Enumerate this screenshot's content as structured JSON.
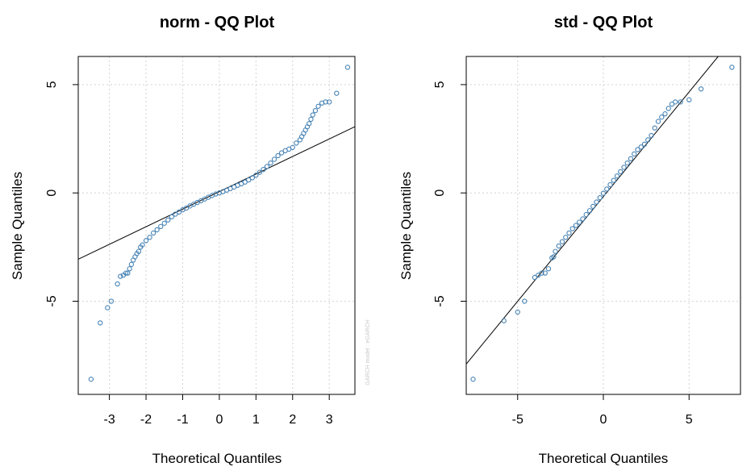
{
  "chart_data": [
    {
      "type": "scatter",
      "title": "norm - QQ Plot",
      "xlabel": "Theoretical Quantiles",
      "ylabel": "Sample Quantiles",
      "xlim": [
        -3.85,
        3.7
      ],
      "ylim": [
        -9.3,
        6.3
      ],
      "xticks": [
        "-3",
        "-2",
        "-1",
        "0",
        "1",
        "2",
        "3"
      ],
      "yticks": [
        "-5",
        "0",
        "5"
      ],
      "grid": true,
      "watermark": "GARCH model : eGARCH",
      "point_color": "#4682b4",
      "reference_line": {
        "x1": -3.85,
        "y1": -3.06,
        "x2": 3.7,
        "y2": 3.06
      },
      "points_x": [
        -3.5,
        -3.25,
        -3.05,
        -2.95,
        -2.78,
        -2.7,
        -2.62,
        -2.55,
        -2.5,
        -2.45,
        -2.4,
        -2.35,
        -2.3,
        -2.25,
        -2.2,
        -2.15,
        -2.1,
        -2.0,
        -1.9,
        -1.8,
        -1.7,
        -1.6,
        -1.5,
        -1.4,
        -1.3,
        -1.2,
        -1.1,
        -1.0,
        -0.9,
        -0.8,
        -0.7,
        -0.6,
        -0.5,
        -0.4,
        -0.3,
        -0.2,
        -0.1,
        0.0,
        0.1,
        0.2,
        0.3,
        0.4,
        0.5,
        0.6,
        0.7,
        0.8,
        0.9,
        1.0,
        1.1,
        1.2,
        1.3,
        1.4,
        1.5,
        1.6,
        1.7,
        1.8,
        1.9,
        2.0,
        2.1,
        2.2,
        2.25,
        2.3,
        2.35,
        2.4,
        2.45,
        2.5,
        2.55,
        2.62,
        2.7,
        2.8,
        2.9,
        3.0,
        3.2,
        3.5
      ],
      "points_y": [
        -8.6,
        -6.0,
        -5.3,
        -5.0,
        -4.2,
        -3.85,
        -3.8,
        -3.7,
        -3.7,
        -3.5,
        -3.3,
        -3.1,
        -2.95,
        -2.8,
        -2.7,
        -2.5,
        -2.4,
        -2.2,
        -2.05,
        -1.85,
        -1.7,
        -1.55,
        -1.4,
        -1.25,
        -1.1,
        -0.98,
        -0.88,
        -0.78,
        -0.7,
        -0.6,
        -0.52,
        -0.44,
        -0.36,
        -0.28,
        -0.2,
        -0.12,
        -0.05,
        0.0,
        0.06,
        0.13,
        0.2,
        0.27,
        0.35,
        0.42,
        0.5,
        0.6,
        0.7,
        0.82,
        0.95,
        1.08,
        1.22,
        1.38,
        1.55,
        1.72,
        1.85,
        1.95,
        2.02,
        2.1,
        2.3,
        2.45,
        2.6,
        2.75,
        2.9,
        3.05,
        3.2,
        3.4,
        3.6,
        3.8,
        4.0,
        4.15,
        4.2,
        4.2,
        4.6,
        5.8
      ]
    },
    {
      "type": "scatter",
      "title": "std - QQ Plot",
      "xlabel": "Theoretical Quantiles",
      "ylabel": "Sample Quantiles",
      "xlim": [
        -8.0,
        8.0
      ],
      "ylim": [
        -9.3,
        6.3
      ],
      "xticks": [
        "-5",
        "0",
        "5"
      ],
      "yticks": [
        "-5",
        "0",
        "5"
      ],
      "grid": true,
      "watermark": "GARCH model : eGARCH",
      "point_color": "#4682b4",
      "reference_line": {
        "x1": -8.0,
        "y1": -7.9,
        "x2": 6.7,
        "y2": 6.3
      },
      "points_x": [
        -7.6,
        -5.8,
        -5.0,
        -4.6,
        -4.0,
        -3.8,
        -3.6,
        -3.4,
        -3.2,
        -3.0,
        -2.9,
        -2.8,
        -2.6,
        -2.4,
        -2.2,
        -2.0,
        -1.8,
        -1.6,
        -1.4,
        -1.2,
        -1.0,
        -0.8,
        -0.6,
        -0.4,
        -0.2,
        0.0,
        0.2,
        0.4,
        0.6,
        0.8,
        1.0,
        1.2,
        1.4,
        1.6,
        1.8,
        2.0,
        2.2,
        2.4,
        2.6,
        2.8,
        3.0,
        3.2,
        3.4,
        3.6,
        3.8,
        4.0,
        4.2,
        4.5,
        5.0,
        5.7,
        7.5
      ],
      "points_y": [
        -8.6,
        -5.9,
        -5.5,
        -5.0,
        -3.9,
        -3.8,
        -3.7,
        -3.7,
        -3.5,
        -3.0,
        -2.95,
        -2.7,
        -2.45,
        -2.25,
        -2.05,
        -1.85,
        -1.65,
        -1.5,
        -1.35,
        -1.2,
        -1.0,
        -0.82,
        -0.62,
        -0.42,
        -0.22,
        -0.02,
        0.18,
        0.38,
        0.58,
        0.78,
        0.98,
        1.18,
        1.38,
        1.58,
        1.8,
        2.0,
        2.12,
        2.25,
        2.45,
        2.65,
        3.0,
        3.3,
        3.5,
        3.65,
        3.9,
        4.1,
        4.2,
        4.2,
        4.3,
        4.8,
        5.8
      ]
    }
  ]
}
